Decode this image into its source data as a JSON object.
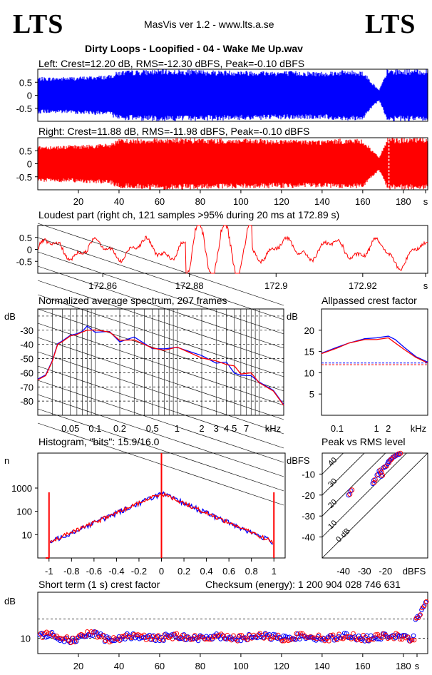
{
  "header": {
    "logo_left": "LTS",
    "logo_right": "LTS",
    "app": "MasVis ver 1.2 - www.lts.a.se",
    "file_title": "Dirty Loops - Loopified - 04 - Wake Me Up.wav"
  },
  "colors": {
    "left": "#0000ff",
    "right": "#ff0000",
    "axis": "#000000"
  },
  "chart_data": [
    {
      "id": "left-waveform",
      "type": "area",
      "title": "Left: Crest=12.20 dB, RMS=-12.30 dBFS, Peak=-0.10 dBFS",
      "ylim": [
        -1,
        1
      ],
      "yticks": [
        "0.5",
        "0",
        "-0.5"
      ],
      "envelope": [
        {
          "t": 0,
          "a": 0.7
        },
        {
          "t": 8,
          "a": 0.7
        },
        {
          "t": 20,
          "a": 0.72
        },
        {
          "t": 35,
          "a": 0.78
        },
        {
          "t": 40,
          "a": 0.95
        },
        {
          "t": 60,
          "a": 1.0
        },
        {
          "t": 90,
          "a": 0.97
        },
        {
          "t": 140,
          "a": 0.92
        },
        {
          "t": 150,
          "a": 0.97
        },
        {
          "t": 160,
          "a": 0.95
        },
        {
          "t": 168,
          "a": 0.2
        },
        {
          "t": 170,
          "a": 0.55
        },
        {
          "t": 172,
          "a": 1.0
        },
        {
          "t": 192,
          "a": 1.0
        }
      ]
    },
    {
      "id": "right-waveform",
      "type": "area",
      "title": "Right: Crest=11.88 dB, RMS=-11.98 dBFS, Peak=-0.10 dBFS",
      "ylim": [
        -1,
        1
      ],
      "yticks": [
        "0.5",
        "0",
        "-0.5"
      ],
      "xticks": [
        "20",
        "40",
        "60",
        "80",
        "100",
        "120",
        "140",
        "160",
        "180",
        "s"
      ],
      "envelope": [
        {
          "t": 0,
          "a": 0.7
        },
        {
          "t": 8,
          "a": 0.7
        },
        {
          "t": 20,
          "a": 0.72
        },
        {
          "t": 35,
          "a": 0.78
        },
        {
          "t": 40,
          "a": 0.95
        },
        {
          "t": 60,
          "a": 1.0
        },
        {
          "t": 90,
          "a": 0.97
        },
        {
          "t": 140,
          "a": 0.92
        },
        {
          "t": 150,
          "a": 0.97
        },
        {
          "t": 160,
          "a": 0.95
        },
        {
          "t": 168,
          "a": 0.25
        },
        {
          "t": 170,
          "a": 0.6
        },
        {
          "t": 172,
          "a": 1.0
        },
        {
          "t": 192,
          "a": 1.0
        }
      ],
      "marker_time": 172.89
    },
    {
      "id": "loudest-part",
      "type": "line",
      "title": "Loudest part (right ch, 121 samples >95% during 20 ms at 172.89 s)",
      "ylim": [
        -1,
        1
      ],
      "xlim": [
        172.845,
        172.935
      ],
      "yticks": [
        "0.5",
        "0",
        "-0.5"
      ],
      "xticks": [
        "172.86",
        "172.88",
        "172.9",
        "172.92",
        "s"
      ]
    },
    {
      "id": "average-spectrum",
      "type": "line",
      "title": "Normalized average spectrum, 207 frames",
      "ylabel": "dB",
      "xlabel": "kHz",
      "ylim": [
        -90,
        -15
      ],
      "yticks": [
        "-30",
        "-40",
        "-50",
        "-60",
        "-70",
        "-80"
      ],
      "xticks": [
        "0.05",
        "0.1",
        "0.2",
        "0.5",
        "1",
        "2",
        "3",
        "4",
        "5",
        "7",
        "kHz"
      ],
      "points": [
        {
          "f": 0.02,
          "db": -65
        },
        {
          "f": 0.025,
          "db": -62
        },
        {
          "f": 0.03,
          "db": -52
        },
        {
          "f": 0.035,
          "db": -40
        },
        {
          "f": 0.04,
          "db": -38
        },
        {
          "f": 0.05,
          "db": -34
        },
        {
          "f": 0.06,
          "db": -33
        },
        {
          "f": 0.07,
          "db": -31
        },
        {
          "f": 0.08,
          "db": -29
        },
        {
          "f": 0.1,
          "db": -30
        },
        {
          "f": 0.15,
          "db": -34
        },
        {
          "f": 0.2,
          "db": -37
        },
        {
          "f": 0.3,
          "db": -38
        },
        {
          "f": 0.5,
          "db": -41
        },
        {
          "f": 0.7,
          "db": -42
        },
        {
          "f": 1,
          "db": -44
        },
        {
          "f": 2,
          "db": -48
        },
        {
          "f": 3,
          "db": -51
        },
        {
          "f": 4,
          "db": -54
        },
        {
          "f": 5,
          "db": -58
        },
        {
          "f": 6,
          "db": -60
        },
        {
          "f": 8,
          "db": -63
        },
        {
          "f": 10,
          "db": -67
        },
        {
          "f": 15,
          "db": -73
        },
        {
          "f": 20,
          "db": -83
        }
      ]
    },
    {
      "id": "allpassed-crest",
      "type": "line",
      "title": "Allpassed crest factor",
      "ylabel": "dB",
      "xlabel": "kHz",
      "ylim": [
        0,
        25
      ],
      "yticks": [
        "20",
        "15",
        "10",
        "5"
      ],
      "xticks": [
        "0.1",
        "1",
        "2",
        "kHz"
      ],
      "series": [
        {
          "f": [
            0.04,
            0.1,
            0.2,
            0.5,
            1,
            2,
            3,
            5,
            10,
            20
          ],
          "left": [
            14.6,
            16.0,
            17.0,
            18.0,
            18.2,
            18.6,
            17.8,
            16.0,
            13.8,
            12.5
          ]
        },
        {
          "f": [
            0.04,
            0.1,
            0.2,
            0.5,
            1,
            2,
            3,
            5,
            10,
            20
          ],
          "right": [
            14.5,
            15.8,
            17.0,
            17.8,
            17.8,
            18.2,
            17.0,
            15.5,
            13.6,
            12.3
          ]
        }
      ],
      "reference": {
        "left": 12.3,
        "right": 11.9
      }
    },
    {
      "id": "histogram",
      "type": "line",
      "title": "Histogram, \"bits\": 15.9/16.0",
      "ylabel": "n",
      "yscale": "log",
      "yticks": [
        "1000",
        "100",
        "10"
      ],
      "xticks": [
        "-1",
        "-0.8",
        "-0.6",
        "-0.4",
        "-0.2",
        "0",
        "0.2",
        "0.4",
        "0.6",
        "0.8",
        "1"
      ],
      "points": [
        {
          "x": -0.99,
          "n": 5
        },
        {
          "x": -0.8,
          "n": 25
        },
        {
          "x": -0.6,
          "n": 55
        },
        {
          "x": -0.4,
          "n": 120
        },
        {
          "x": -0.2,
          "n": 280
        },
        {
          "x": 0,
          "n": 600
        },
        {
          "x": 0.2,
          "n": 280
        },
        {
          "x": 0.4,
          "n": 120
        },
        {
          "x": 0.6,
          "n": 55
        },
        {
          "x": 0.8,
          "n": 25
        },
        {
          "x": 0.99,
          "n": 5
        }
      ]
    },
    {
      "id": "peak-vs-rms",
      "type": "scatter",
      "title": "Peak vs RMS level",
      "ylabel": "dBFS",
      "xlabel": "dBFS",
      "xlim": [
        -50,
        0
      ],
      "ylim": [
        -50,
        0
      ],
      "yticks": [
        "-10",
        "-20",
        "-30",
        "-40"
      ],
      "xticks": [
        "-40",
        "-30",
        "-20",
        "dBFS"
      ],
      "diagonals": [
        "40",
        "30",
        "20",
        "10",
        "0 dB"
      ],
      "points": [
        {
          "x": -37.5,
          "y": -20.0
        },
        {
          "x": -36.5,
          "y": -18.0
        },
        {
          "x": -25.5,
          "y": -13.0
        },
        {
          "x": -24.0,
          "y": -10.5
        },
        {
          "x": -23.0,
          "y": -8.5
        },
        {
          "x": -22.0,
          "y": -11.0
        },
        {
          "x": -21.0,
          "y": -7.0
        },
        {
          "x": -20.0,
          "y": -6.5
        },
        {
          "x": -19.0,
          "y": -5.0
        },
        {
          "x": -18.5,
          "y": -4.0
        },
        {
          "x": -17.5,
          "y": -3.0
        },
        {
          "x": -16.5,
          "y": -2.0
        },
        {
          "x": -15.5,
          "y": -1.5
        },
        {
          "x": -14.5,
          "y": -0.8
        },
        {
          "x": -13.5,
          "y": -0.5
        },
        {
          "x": -26.0,
          "y": -14.5
        },
        {
          "x": -22.5,
          "y": -9.5
        },
        {
          "x": -18.0,
          "y": -3.5
        }
      ]
    },
    {
      "id": "short-term-crest",
      "type": "scatter",
      "title": "Short term (1 s) crest factor",
      "annotation": "Checksum (energy):  1 200 904 028 746 631",
      "ylabel": "dB",
      "ylim": [
        6,
        22
      ],
      "yticks": [
        "10"
      ],
      "xticks": [
        "20",
        "40",
        "60",
        "80",
        "100",
        "120",
        "140",
        "160",
        "180",
        "s"
      ],
      "reference_lines": [
        10,
        15
      ]
    }
  ]
}
